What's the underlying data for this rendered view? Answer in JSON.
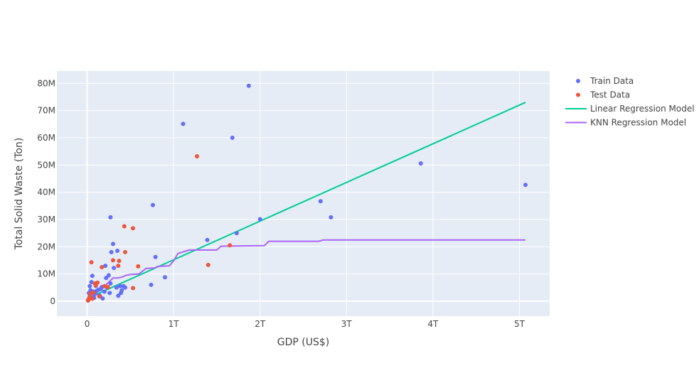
{
  "chart_data": {
    "type": "scatter",
    "xlabel": "GDP (US$)",
    "ylabel": "Total Solid Waste (Ton)",
    "xlim": [
      -0.35,
      5.35
    ],
    "ylim": [
      -5.5,
      84.5
    ],
    "x_unit": "trillion US$",
    "y_unit": "million tons",
    "x_ticks": [
      0,
      1,
      2,
      3,
      4,
      5
    ],
    "x_tick_labels": [
      "0",
      "1T",
      "2T",
      "3T",
      "4T",
      "5T"
    ],
    "y_ticks": [
      0,
      10,
      20,
      30,
      40,
      50,
      60,
      70,
      80
    ],
    "y_tick_labels": [
      "0",
      "10M",
      "20M",
      "30M",
      "40M",
      "50M",
      "60M",
      "70M",
      "80M"
    ],
    "grid": true,
    "legend_position": "top-right",
    "series": [
      {
        "name": "Train Data",
        "kind": "markers",
        "color": "#636efa",
        "points": [
          [
            0.01,
            0.3
          ],
          [
            0.02,
            1.0
          ],
          [
            0.03,
            2.0
          ],
          [
            0.02,
            3.0
          ],
          [
            0.04,
            4.0
          ],
          [
            0.03,
            5.5
          ],
          [
            0.05,
            7.0
          ],
          [
            0.06,
            9.3
          ],
          [
            0.07,
            3.5
          ],
          [
            0.08,
            1.2
          ],
          [
            0.09,
            2.6
          ],
          [
            0.1,
            5.6
          ],
          [
            0.11,
            3.8
          ],
          [
            0.13,
            4.2
          ],
          [
            0.14,
            2.2
          ],
          [
            0.15,
            1.8
          ],
          [
            0.16,
            4.5
          ],
          [
            0.17,
            5.2
          ],
          [
            0.18,
            1.0
          ],
          [
            0.2,
            3.5
          ],
          [
            0.21,
            13.0
          ],
          [
            0.22,
            8.5
          ],
          [
            0.23,
            5.0
          ],
          [
            0.25,
            9.5
          ],
          [
            0.26,
            3.0
          ],
          [
            0.27,
            6.5
          ],
          [
            0.28,
            18.0
          ],
          [
            0.3,
            21.0
          ],
          [
            0.31,
            12.2
          ],
          [
            0.34,
            5.0
          ],
          [
            0.35,
            18.5
          ],
          [
            0.36,
            2.0
          ],
          [
            0.38,
            5.5
          ],
          [
            0.39,
            3.0
          ],
          [
            0.4,
            4.0
          ],
          [
            0.42,
            5.5
          ],
          [
            0.44,
            5.0
          ],
          [
            0.27,
            30.8
          ],
          [
            0.74,
            6.0
          ],
          [
            0.76,
            35.3
          ],
          [
            0.79,
            16.2
          ],
          [
            0.9,
            8.8
          ],
          [
            1.11,
            65.1
          ],
          [
            1.39,
            22.5
          ],
          [
            1.68,
            60.0
          ],
          [
            1.73,
            25.0
          ],
          [
            1.87,
            79.1
          ],
          [
            2.0,
            30.1
          ],
          [
            2.7,
            36.7
          ],
          [
            2.82,
            30.8
          ],
          [
            3.86,
            50.6
          ],
          [
            5.07,
            42.7
          ]
        ]
      },
      {
        "name": "Test Data",
        "kind": "markers",
        "color": "#ef553b",
        "points": [
          [
            0.01,
            0.2
          ],
          [
            0.02,
            0.8
          ],
          [
            0.03,
            1.5
          ],
          [
            0.04,
            2.8
          ],
          [
            0.05,
            14.3
          ],
          [
            0.06,
            0.9
          ],
          [
            0.07,
            3.2
          ],
          [
            0.09,
            6.5
          ],
          [
            0.1,
            5.8
          ],
          [
            0.12,
            6.8
          ],
          [
            0.14,
            1.8
          ],
          [
            0.17,
            12.5
          ],
          [
            0.2,
            5.5
          ],
          [
            0.24,
            5.2
          ],
          [
            0.3,
            15.0
          ],
          [
            0.36,
            13.0
          ],
          [
            0.37,
            14.8
          ],
          [
            0.43,
            27.5
          ],
          [
            0.44,
            18.0
          ],
          [
            0.53,
            26.8
          ],
          [
            0.53,
            4.8
          ],
          [
            0.59,
            12.8
          ],
          [
            1.27,
            53.2
          ],
          [
            1.4,
            13.3
          ],
          [
            1.65,
            20.5
          ]
        ]
      },
      {
        "name": "Linear Regression Model",
        "kind": "line",
        "color": "#00cc96",
        "points": [
          [
            0.0,
            1.0
          ],
          [
            5.07,
            73.0
          ]
        ]
      },
      {
        "name": "KNN Regression Model",
        "kind": "line",
        "color": "#ab63fa",
        "points": [
          [
            0.0,
            0.5
          ],
          [
            0.05,
            2.0
          ],
          [
            0.1,
            3.5
          ],
          [
            0.15,
            4.5
          ],
          [
            0.2,
            5.5
          ],
          [
            0.25,
            7.0
          ],
          [
            0.3,
            8.5
          ],
          [
            0.35,
            8.5
          ],
          [
            0.4,
            8.8
          ],
          [
            0.45,
            9.5
          ],
          [
            0.5,
            9.8
          ],
          [
            0.6,
            10.0
          ],
          [
            0.68,
            12.0
          ],
          [
            0.78,
            12.2
          ],
          [
            0.82,
            12.8
          ],
          [
            0.95,
            13.0
          ],
          [
            1.0,
            14.8
          ],
          [
            1.05,
            17.5
          ],
          [
            1.1,
            18.0
          ],
          [
            1.18,
            18.8
          ],
          [
            1.5,
            18.8
          ],
          [
            1.55,
            20.2
          ],
          [
            2.05,
            20.4
          ],
          [
            2.1,
            22.0
          ],
          [
            2.68,
            22.0
          ],
          [
            2.73,
            22.5
          ],
          [
            5.07,
            22.5
          ]
        ]
      }
    ]
  }
}
